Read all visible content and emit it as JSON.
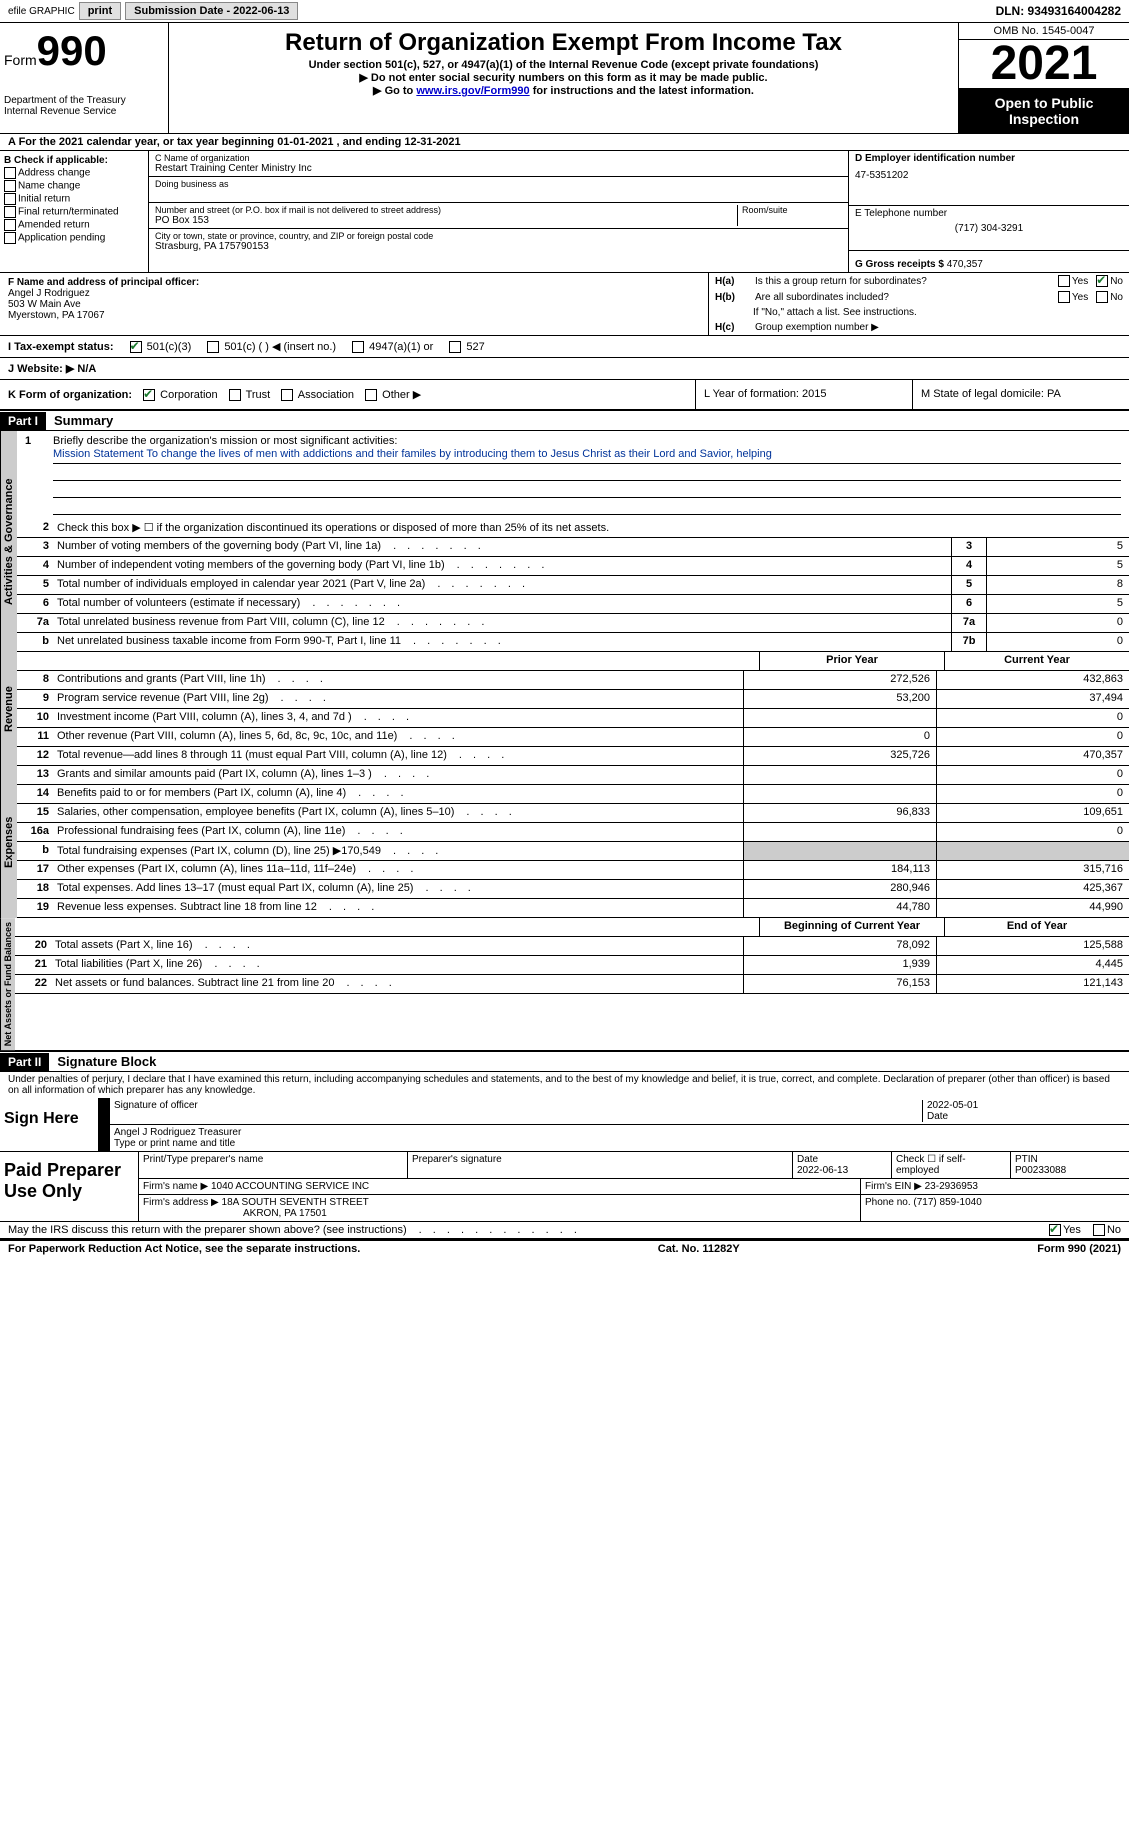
{
  "topbar": {
    "efile": "efile GRAPHIC",
    "print": "print",
    "submission": "Submission Date - 2022-06-13",
    "dln": "DLN: 93493164004282"
  },
  "header": {
    "form_label": "Form",
    "form_num": "990",
    "dept": "Department of the Treasury",
    "irs": "Internal Revenue Service",
    "title": "Return of Organization Exempt From Income Tax",
    "subtitle": "Under section 501(c), 527, or 4947(a)(1) of the Internal Revenue Code (except private foundations)",
    "warn": "▶ Do not enter social security numbers on this form as it may be made public.",
    "goto_pre": "▶ Go to ",
    "goto_link": "www.irs.gov/Form990",
    "goto_post": " for instructions and the latest information.",
    "omb": "OMB No. 1545-0047",
    "year": "2021",
    "open": "Open to Public Inspection"
  },
  "row_a": "A For the 2021 calendar year, or tax year beginning 01-01-2021   , and ending 12-31-2021",
  "section_b": {
    "b_label": "B Check if applicable:",
    "opts": [
      "Address change",
      "Name change",
      "Initial return",
      "Final return/terminated",
      "Amended return",
      "Application pending"
    ],
    "c_label": "C Name of organization",
    "c_name": "Restart Training Center Ministry Inc",
    "dba_label": "Doing business as",
    "addr_label": "Number and street (or P.O. box if mail is not delivered to street address)",
    "room": "Room/suite",
    "addr": "PO Box 153",
    "city_label": "City or town, state or province, country, and ZIP or foreign postal code",
    "city": "Strasburg, PA  175790153",
    "d_label": "D Employer identification number",
    "d_val": "47-5351202",
    "e_label": "E Telephone number",
    "e_val": "(717) 304-3291",
    "g_label": "G Gross receipts $",
    "g_val": "470,357"
  },
  "principal": {
    "f_label": "F Name and address of principal officer:",
    "name": "Angel J Rodriguez",
    "addr1": "503 W Main Ave",
    "addr2": "Myerstown, PA  17067",
    "ha": "H(a)  Is this a group return for subordinates?",
    "hb": "H(b)  Are all subordinates included?",
    "hb_note": "If \"No,\" attach a list. See instructions.",
    "hc": "H(c)  Group exemption number ▶",
    "yes": "Yes",
    "no": "No"
  },
  "tax_status": {
    "label": "I  Tax-exempt status:",
    "opt1": "501(c)(3)",
    "opt2": "501(c) (  ) ◀ (insert no.)",
    "opt3": "4947(a)(1) or",
    "opt4": "527"
  },
  "website": {
    "label": "J  Website: ▶",
    "val": "N/A"
  },
  "form_org": {
    "k": "K Form of organization:",
    "corp": "Corporation",
    "trust": "Trust",
    "assoc": "Association",
    "other": "Other ▶",
    "l": "L Year of formation: 2015",
    "m": "M State of legal domicile: PA"
  },
  "part1": {
    "label": "Part I",
    "title": "Summary",
    "line1_label": "Briefly describe the organization's mission or most significant activities:",
    "mission": "Mission Statement To change the lives of men with addictions and their familes by introducing them to Jesus Christ as their Lord and Savior, helping",
    "line2": "Check this box ▶ ☐ if the organization discontinued its operations or disposed of more than 25% of its net assets.",
    "rows_simple": [
      {
        "n": "3",
        "t": "Number of voting members of the governing body (Part VI, line 1a)",
        "box": "3",
        "v": "5"
      },
      {
        "n": "4",
        "t": "Number of independent voting members of the governing body (Part VI, line 1b)",
        "box": "4",
        "v": "5"
      },
      {
        "n": "5",
        "t": "Total number of individuals employed in calendar year 2021 (Part V, line 2a)",
        "box": "5",
        "v": "8"
      },
      {
        "n": "6",
        "t": "Total number of volunteers (estimate if necessary)",
        "box": "6",
        "v": "5"
      },
      {
        "n": "7a",
        "t": "Total unrelated business revenue from Part VIII, column (C), line 12",
        "box": "7a",
        "v": "0"
      },
      {
        "n": "b",
        "t": "Net unrelated business taxable income from Form 990-T, Part I, line 11",
        "box": "7b",
        "v": "0"
      }
    ],
    "prior": "Prior Year",
    "current": "Current Year",
    "revenue_rows": [
      {
        "n": "8",
        "t": "Contributions and grants (Part VIII, line 1h)",
        "p": "272,526",
        "c": "432,863"
      },
      {
        "n": "9",
        "t": "Program service revenue (Part VIII, line 2g)",
        "p": "53,200",
        "c": "37,494"
      },
      {
        "n": "10",
        "t": "Investment income (Part VIII, column (A), lines 3, 4, and 7d )",
        "p": "",
        "c": "0"
      },
      {
        "n": "11",
        "t": "Other revenue (Part VIII, column (A), lines 5, 6d, 8c, 9c, 10c, and 11e)",
        "p": "0",
        "c": "0"
      },
      {
        "n": "12",
        "t": "Total revenue—add lines 8 through 11 (must equal Part VIII, column (A), line 12)",
        "p": "325,726",
        "c": "470,357"
      }
    ],
    "expense_rows": [
      {
        "n": "13",
        "t": "Grants and similar amounts paid (Part IX, column (A), lines 1–3 )",
        "p": "",
        "c": "0"
      },
      {
        "n": "14",
        "t": "Benefits paid to or for members (Part IX, column (A), line 4)",
        "p": "",
        "c": "0"
      },
      {
        "n": "15",
        "t": "Salaries, other compensation, employee benefits (Part IX, column (A), lines 5–10)",
        "p": "96,833",
        "c": "109,651"
      },
      {
        "n": "16a",
        "t": "Professional fundraising fees (Part IX, column (A), line 11e)",
        "p": "",
        "c": "0"
      },
      {
        "n": "b",
        "t": "Total fundraising expenses (Part IX, column (D), line 25) ▶170,549",
        "p": "",
        "c": "",
        "shaded": true
      },
      {
        "n": "17",
        "t": "Other expenses (Part IX, column (A), lines 11a–11d, 11f–24e)",
        "p": "184,113",
        "c": "315,716"
      },
      {
        "n": "18",
        "t": "Total expenses. Add lines 13–17 (must equal Part IX, column (A), line 25)",
        "p": "280,946",
        "c": "425,367"
      },
      {
        "n": "19",
        "t": "Revenue less expenses. Subtract line 18 from line 12",
        "p": "44,780",
        "c": "44,990"
      }
    ],
    "begin": "Beginning of Current Year",
    "end": "End of Year",
    "net_rows": [
      {
        "n": "20",
        "t": "Total assets (Part X, line 16)",
        "p": "78,092",
        "c": "125,588"
      },
      {
        "n": "21",
        "t": "Total liabilities (Part X, line 26)",
        "p": "1,939",
        "c": "4,445"
      },
      {
        "n": "22",
        "t": "Net assets or fund balances. Subtract line 21 from line 20",
        "p": "76,153",
        "c": "121,143"
      }
    ]
  },
  "vert_labels": {
    "activities": "Activities & Governance",
    "revenue": "Revenue",
    "expenses": "Expenses",
    "net": "Net Assets or Fund Balances"
  },
  "part2": {
    "label": "Part II",
    "title": "Signature Block",
    "declaration": "Under penalties of perjury, I declare that I have examined this return, including accompanying schedules and statements, and to the best of my knowledge and belief, it is true, correct, and complete. Declaration of preparer (other than officer) is based on all information of which preparer has any knowledge.",
    "sign_here": "Sign Here",
    "sig_officer": "Signature of officer",
    "date": "Date",
    "sig_date": "2022-05-01",
    "name_title": "Angel J Rodriguez  Treasurer",
    "type_name": "Type or print name and title",
    "paid": "Paid Preparer Use Only",
    "print_name": "Print/Type preparer's name",
    "prep_sig": "Preparer's signature",
    "prep_date_label": "Date",
    "prep_date": "2022-06-13",
    "check_if": "Check ☐ if self-employed",
    "ptin_label": "PTIN",
    "ptin": "P00233088",
    "firm_name_label": "Firm's name    ▶",
    "firm_name": "1040 ACCOUNTING SERVICE INC",
    "firm_ein_label": "Firm's EIN ▶",
    "firm_ein": "23-2936953",
    "firm_addr_label": "Firm's address ▶",
    "firm_addr1": "18A SOUTH SEVENTH STREET",
    "firm_addr2": "AKRON, PA  17501",
    "phone_label": "Phone no.",
    "phone": "(717) 859-1040",
    "irs_discuss": "May the IRS discuss this return with the preparer shown above? (see instructions)",
    "yes": "Yes",
    "no": "No"
  },
  "footer": {
    "left": "For Paperwork Reduction Act Notice, see the separate instructions.",
    "mid": "Cat. No. 11282Y",
    "right": "Form 990 (2021)"
  }
}
